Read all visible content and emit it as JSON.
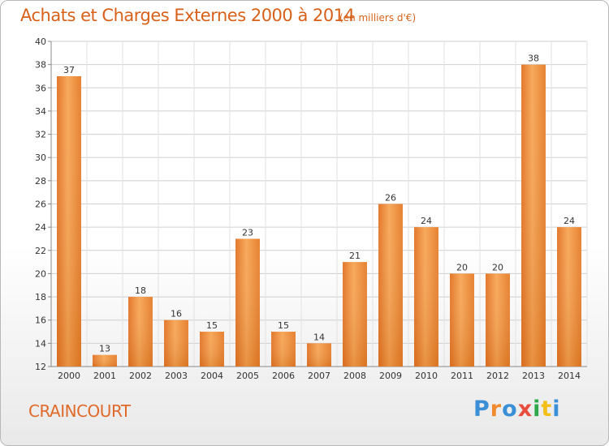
{
  "chart_data": {
    "type": "bar",
    "title": "Achats et Charges Externes 2000 à 2014",
    "subtitle": "(en milliers d'€)",
    "categories": [
      "2000",
      "2001",
      "2002",
      "2003",
      "2004",
      "2005",
      "2006",
      "2007",
      "2008",
      "2009",
      "2010",
      "2011",
      "2012",
      "2013",
      "2014"
    ],
    "values": [
      37,
      13,
      18,
      16,
      15,
      23,
      15,
      14,
      21,
      26,
      24,
      20,
      20,
      38,
      24
    ],
    "ylim": [
      12,
      40
    ],
    "yticks": [
      12,
      14,
      16,
      18,
      20,
      22,
      24,
      26,
      28,
      30,
      32,
      34,
      36,
      38,
      40
    ],
    "grid": true,
    "bar_color": "#f08a2e",
    "xlabel": "",
    "ylabel": ""
  },
  "footer": {
    "commune": "CRAINCOURT",
    "logo_text": "Proxiti"
  },
  "colors": {
    "title": "#d8611a",
    "bar_light": "#f7a95a",
    "bar_dark": "#e0701a",
    "logo": [
      "#3a8fd6",
      "#f08a2e",
      "#3a8fd6",
      "#e84c3d",
      "#2ea84a",
      "#f2c018",
      "#3a8fd6"
    ]
  }
}
